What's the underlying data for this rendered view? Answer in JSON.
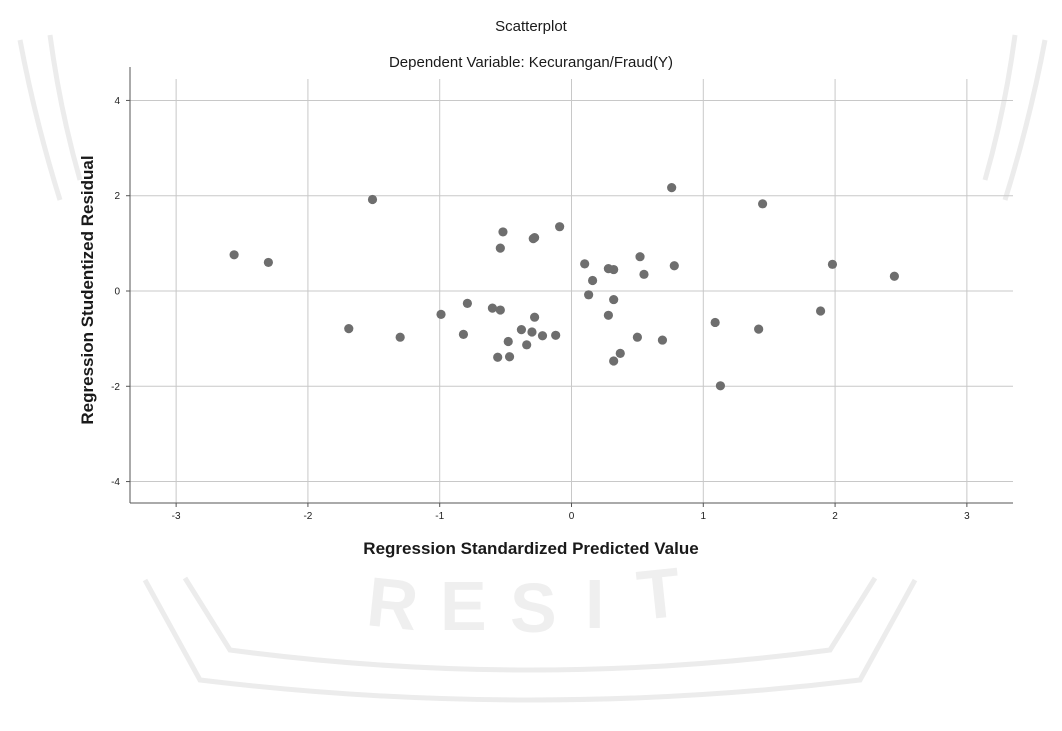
{
  "chart_data": {
    "type": "scatter",
    "title": "Scatterplot",
    "subtitle": "Dependent Variable: Kecurangan/Fraud(Y)",
    "xlabel": "Regression Standardized Predicted Value",
    "ylabel": "Regression Studentized Residual",
    "xlim": [
      -3.35,
      3.35
    ],
    "ylim": [
      -4.45,
      4.45
    ],
    "x_ticks": [
      -3,
      -2,
      -1,
      0,
      1,
      2,
      3
    ],
    "y_ticks": [
      -4,
      -2,
      0,
      2,
      4
    ],
    "grid": true,
    "marker_color": "#6e6e6e",
    "points": [
      {
        "x": -2.56,
        "y": 0.76
      },
      {
        "x": -2.3,
        "y": 0.6
      },
      {
        "x": -1.51,
        "y": 1.92
      },
      {
        "x": -1.69,
        "y": -0.79
      },
      {
        "x": -1.3,
        "y": -0.97
      },
      {
        "x": -0.99,
        "y": -0.49
      },
      {
        "x": -0.82,
        "y": -0.91
      },
      {
        "x": -0.79,
        "y": -0.26
      },
      {
        "x": -0.6,
        "y": -0.36
      },
      {
        "x": -0.54,
        "y": -0.4
      },
      {
        "x": -0.56,
        "y": -1.39
      },
      {
        "x": -0.48,
        "y": -1.06
      },
      {
        "x": -0.47,
        "y": -1.38
      },
      {
        "x": -0.38,
        "y": -0.81
      },
      {
        "x": -0.34,
        "y": -1.13
      },
      {
        "x": -0.3,
        "y": -0.86
      },
      {
        "x": -0.28,
        "y": -0.55
      },
      {
        "x": -0.22,
        "y": -0.94
      },
      {
        "x": -0.12,
        "y": -0.93
      },
      {
        "x": -0.54,
        "y": 0.9
      },
      {
        "x": -0.52,
        "y": 1.24
      },
      {
        "x": -0.29,
        "y": 1.1
      },
      {
        "x": -0.28,
        "y": 1.12
      },
      {
        "x": -0.09,
        "y": 1.35
      },
      {
        "x": 0.1,
        "y": 0.57
      },
      {
        "x": 0.16,
        "y": 0.22
      },
      {
        "x": 0.13,
        "y": -0.08
      },
      {
        "x": 0.28,
        "y": 0.47
      },
      {
        "x": 0.32,
        "y": 0.45
      },
      {
        "x": 0.32,
        "y": -0.18
      },
      {
        "x": 0.28,
        "y": -0.51
      },
      {
        "x": 0.32,
        "y": -1.47
      },
      {
        "x": 0.37,
        "y": -1.31
      },
      {
        "x": 0.5,
        "y": -0.97
      },
      {
        "x": 0.52,
        "y": 0.72
      },
      {
        "x": 0.55,
        "y": 0.35
      },
      {
        "x": 0.69,
        "y": -1.03
      },
      {
        "x": 0.76,
        "y": 2.17
      },
      {
        "x": 0.78,
        "y": 0.53
      },
      {
        "x": 1.09,
        "y": -0.66
      },
      {
        "x": 1.13,
        "y": -1.99
      },
      {
        "x": 1.42,
        "y": -0.8
      },
      {
        "x": 1.45,
        "y": 1.83
      },
      {
        "x": 1.89,
        "y": -0.42
      },
      {
        "x": 1.98,
        "y": 0.56
      },
      {
        "x": 2.45,
        "y": 0.31
      }
    ]
  }
}
